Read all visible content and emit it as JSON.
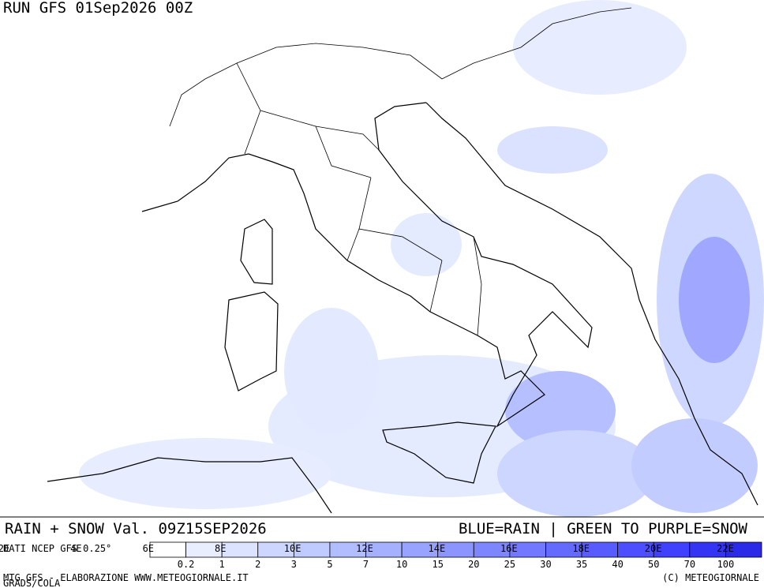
{
  "header": {
    "run": "RUN GFS 01Sep2026 00Z"
  },
  "title": {
    "left": "RAIN + SNOW Val. 09Z15SEP2026",
    "right": "BLUE=RAIN | GREEN TO PURPLE=SNOW"
  },
  "source": "DATI NCEP GFS 0.25°",
  "longitudes": [
    "2E",
    "4E",
    "6E",
    "8E",
    "10E",
    "12E",
    "14E",
    "16E",
    "18E",
    "20E",
    "22E"
  ],
  "legend": {
    "labels": [
      "0.2",
      "1",
      "2",
      "3",
      "5",
      "7",
      "10",
      "15",
      "20",
      "25",
      "30",
      "35",
      "40",
      "50",
      "70",
      "100"
    ],
    "colors": [
      "#ffffff",
      "#e9eeff",
      "#dbe3ff",
      "#ccd6ff",
      "#bfcaff",
      "#b2bdff",
      "#a5b0ff",
      "#98a2ff",
      "#8b94ff",
      "#7e86ff",
      "#7278ff",
      "#656aff",
      "#585cff",
      "#4c4eff",
      "#4040ff",
      "#3434f5",
      "#2a2ae8"
    ]
  },
  "footer": {
    "left": "MTG GFS - ELABORAZIONE WWW.METEOGIORNALE.IT",
    "credit": "GRADS/COLA",
    "right": "(C) METEOGIORNALE"
  }
}
